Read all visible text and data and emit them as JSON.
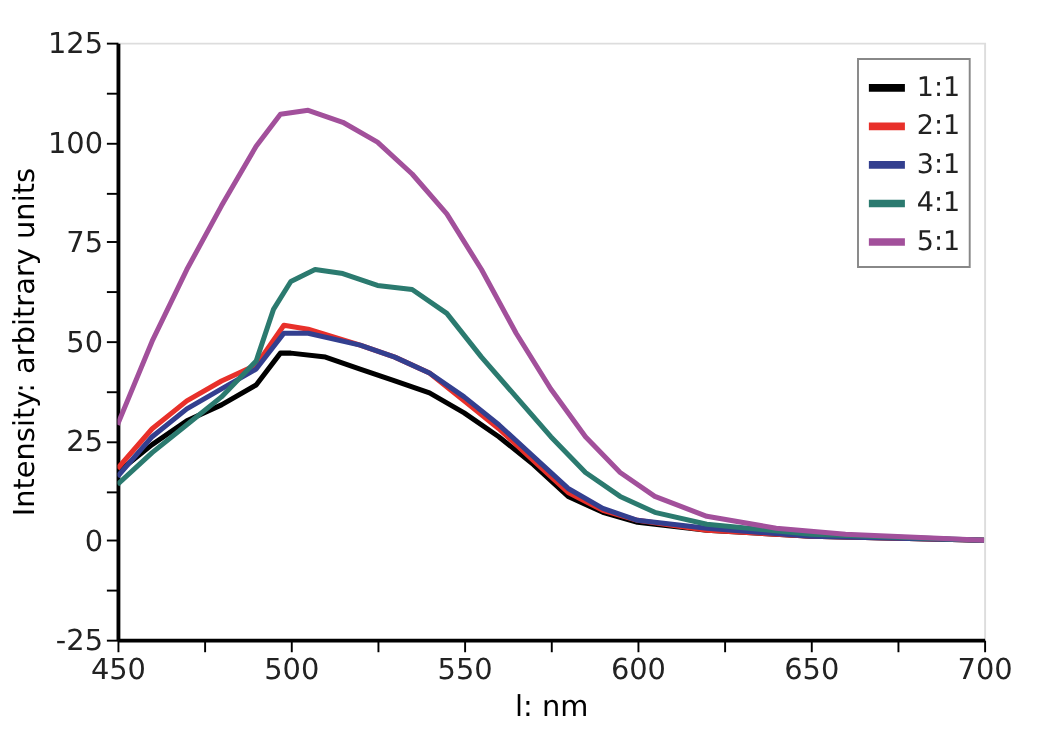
{
  "chart_data": {
    "type": "line",
    "xlabel": "l: nm",
    "ylabel": "Intensity: arbitrary units",
    "xlim": [
      450,
      700
    ],
    "ylim": [
      -25,
      125
    ],
    "xticks": [
      450,
      {
        "value": 475,
        "label": null
      },
      500,
      {
        "value": 525,
        "label": null
      },
      550,
      {
        "value": 575,
        "label": null
      },
      600,
      {
        "value": 625,
        "label": null
      },
      650,
      {
        "value": 675,
        "label": null
      },
      700
    ],
    "yticks": [
      -25,
      {
        "value": -12.5,
        "label": null
      },
      0,
      {
        "value": 12.5,
        "label": null
      },
      25,
      {
        "value": 37.5,
        "label": null
      },
      50,
      {
        "value": 62.5,
        "label": null
      },
      75,
      {
        "value": 87.5,
        "label": null
      },
      100,
      {
        "value": 112.5,
        "label": null
      },
      125
    ],
    "grid": false,
    "legend": "top right",
    "marker": "none",
    "line_style": "solid",
    "series": [
      {
        "name": "1:1",
        "color": "#000000",
        "x": [
          450,
          460,
          470,
          480,
          490,
          497,
          500,
          510,
          520,
          530,
          540,
          550,
          560,
          570,
          580,
          590,
          600,
          620,
          650,
          700
        ],
        "values": [
          17,
          24,
          30,
          34,
          39,
          47,
          47,
          46,
          43,
          40,
          37,
          32,
          26,
          19,
          11,
          7,
          4.5,
          2.5,
          1,
          0
        ]
      },
      {
        "name": "2:1",
        "color": "#e8302a",
        "x": [
          450,
          460,
          470,
          480,
          490,
          498,
          505,
          520,
          530,
          540,
          550,
          560,
          570,
          580,
          590,
          600,
          620,
          650,
          700
        ],
        "values": [
          18,
          28,
          35,
          40,
          44,
          54,
          53,
          49,
          46,
          42,
          35,
          28,
          20,
          12,
          7.5,
          5,
          2.5,
          1,
          0
        ]
      },
      {
        "name": "3:1",
        "color": "#333f8f",
        "x": [
          450,
          460,
          470,
          480,
          490,
          498,
          505,
          520,
          530,
          540,
          550,
          560,
          570,
          580,
          590,
          600,
          620,
          650,
          700
        ],
        "values": [
          16,
          26,
          33,
          38,
          43,
          52,
          52,
          49,
          46,
          42,
          36,
          29,
          21,
          13,
          8,
          5,
          3,
          1,
          0
        ]
      },
      {
        "name": "4:1",
        "color": "#2b7a6f",
        "x": [
          450,
          460,
          470,
          480,
          490,
          495,
          500,
          507,
          515,
          525,
          535,
          545,
          555,
          565,
          575,
          585,
          595,
          605,
          620,
          650,
          700
        ],
        "values": [
          14,
          22,
          29,
          36,
          45,
          58,
          65,
          68,
          67,
          64,
          63,
          57,
          46,
          36,
          26,
          17,
          11,
          7,
          4,
          1.5,
          0
        ]
      },
      {
        "name": "5:1",
        "color": "#a2509b",
        "x": [
          450,
          460,
          470,
          480,
          490,
          497,
          505,
          515,
          525,
          535,
          545,
          555,
          565,
          575,
          585,
          595,
          605,
          620,
          640,
          660,
          700
        ],
        "values": [
          29,
          50,
          68,
          84,
          99,
          107,
          108,
          105,
          100,
          92,
          82,
          68,
          52,
          38,
          26,
          17,
          11,
          6,
          3,
          1.5,
          0
        ]
      }
    ]
  }
}
